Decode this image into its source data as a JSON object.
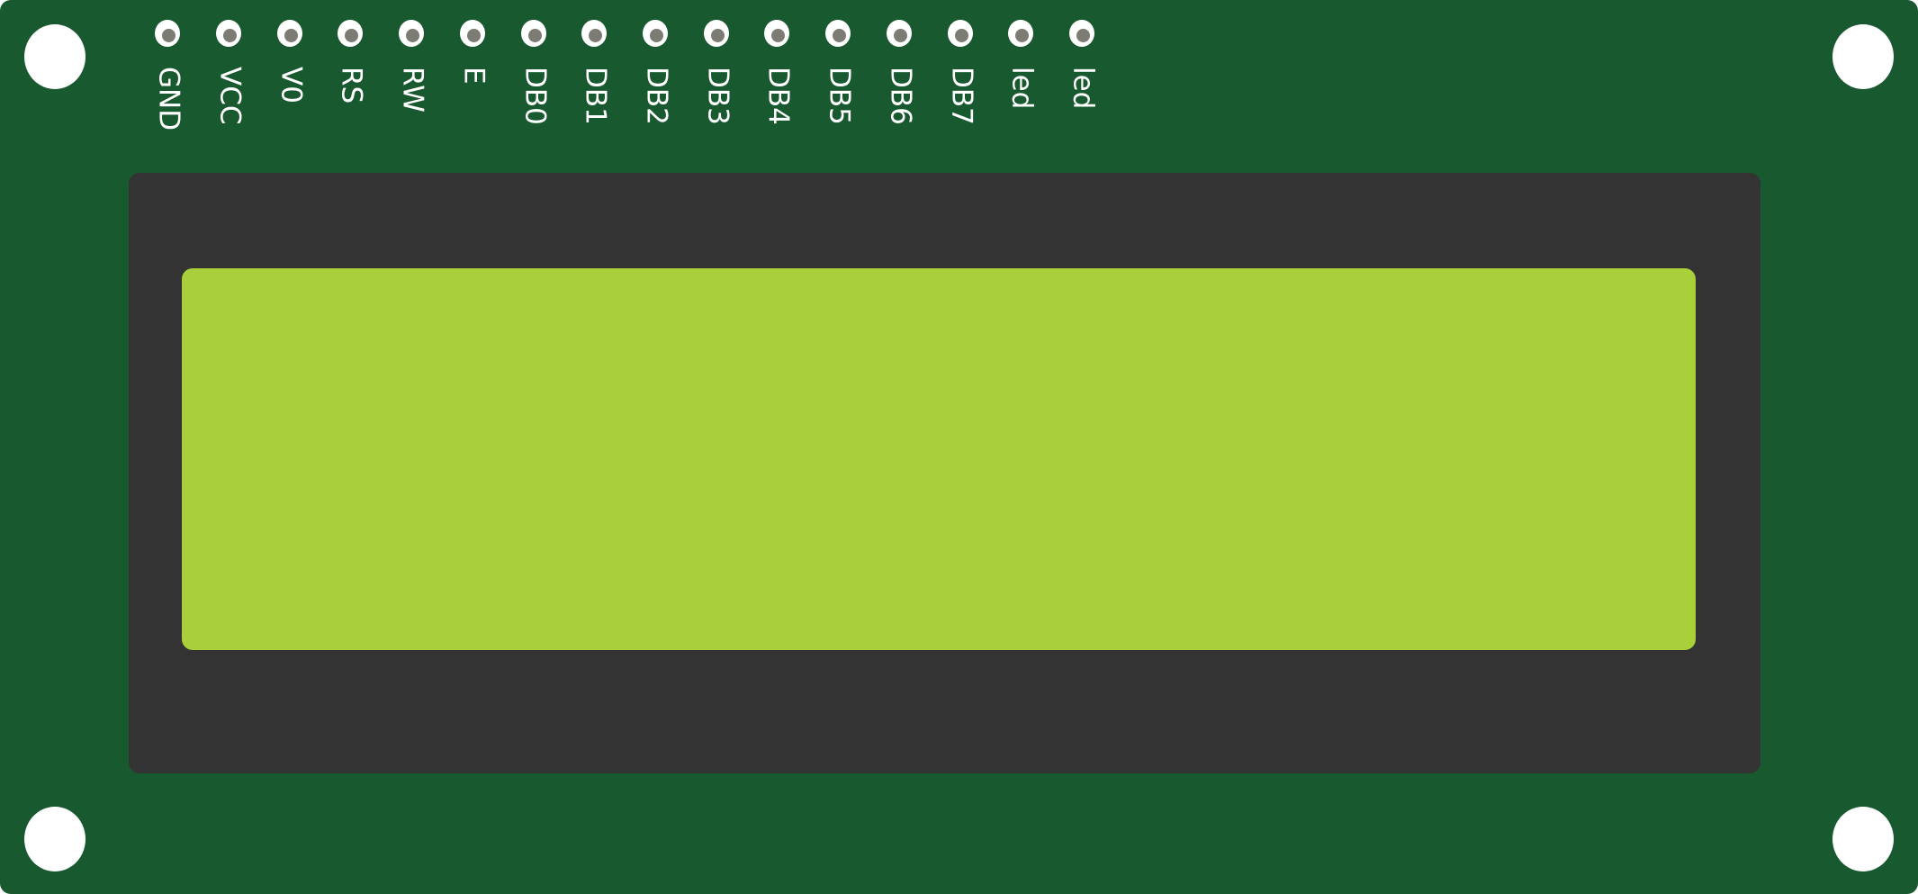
{
  "module": {
    "colors": {
      "pcb": "#19592f",
      "bezel": "#333333",
      "screen": "#a9cf3a",
      "hole": "#ffffff",
      "pin_core": "#7c7c74"
    },
    "pins": [
      {
        "label": "GND"
      },
      {
        "label": "VCC"
      },
      {
        "label": "V0"
      },
      {
        "label": "RS"
      },
      {
        "label": "RW"
      },
      {
        "label": "E"
      },
      {
        "label": "DB0"
      },
      {
        "label": "DB1"
      },
      {
        "label": "DB2"
      },
      {
        "label": "DB3"
      },
      {
        "label": "DB4"
      },
      {
        "label": "DB5"
      },
      {
        "label": "DB6"
      },
      {
        "label": "DB7"
      },
      {
        "label": "led"
      },
      {
        "label": "led"
      }
    ]
  }
}
